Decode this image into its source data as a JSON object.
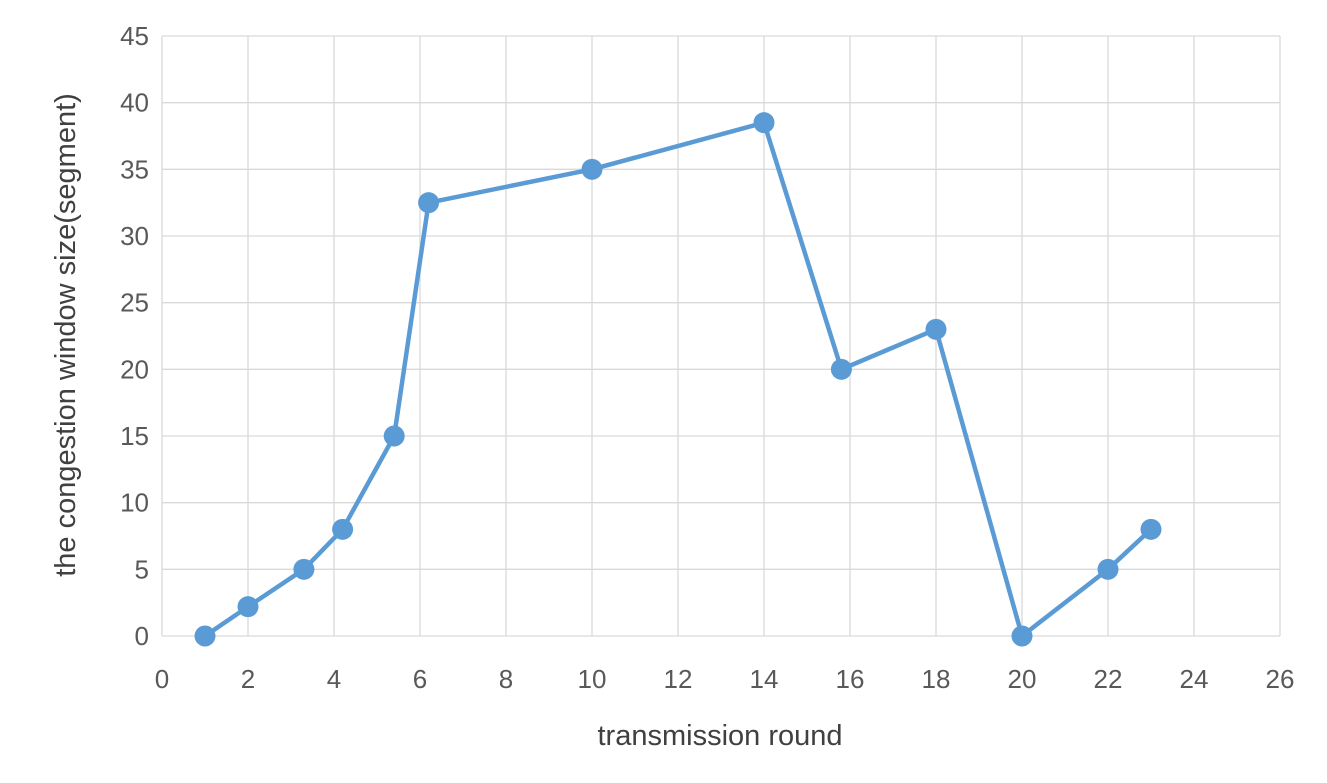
{
  "chart_data": {
    "type": "scatter",
    "title": "",
    "xlabel": "transmission round",
    "ylabel": "the congestion window size(segment)",
    "xlim": [
      0,
      26
    ],
    "ylim": [
      0,
      45
    ],
    "x_ticks": [
      0,
      2,
      4,
      6,
      8,
      10,
      12,
      14,
      16,
      18,
      20,
      22,
      24,
      26
    ],
    "y_ticks": [
      0,
      5,
      10,
      15,
      20,
      25,
      30,
      35,
      40,
      45
    ],
    "grid": true,
    "legend": "none",
    "series": [
      {
        "color": "#5b9bd5",
        "lines": true,
        "markers": true,
        "x": [
          1,
          2,
          3.3,
          4.2,
          5.4,
          6.2,
          10,
          14,
          15.8,
          18,
          20,
          22,
          23
        ],
        "y": [
          0,
          2.2,
          5,
          8,
          15,
          32.5,
          35,
          38.5,
          20,
          23,
          0,
          5,
          8
        ]
      }
    ]
  }
}
